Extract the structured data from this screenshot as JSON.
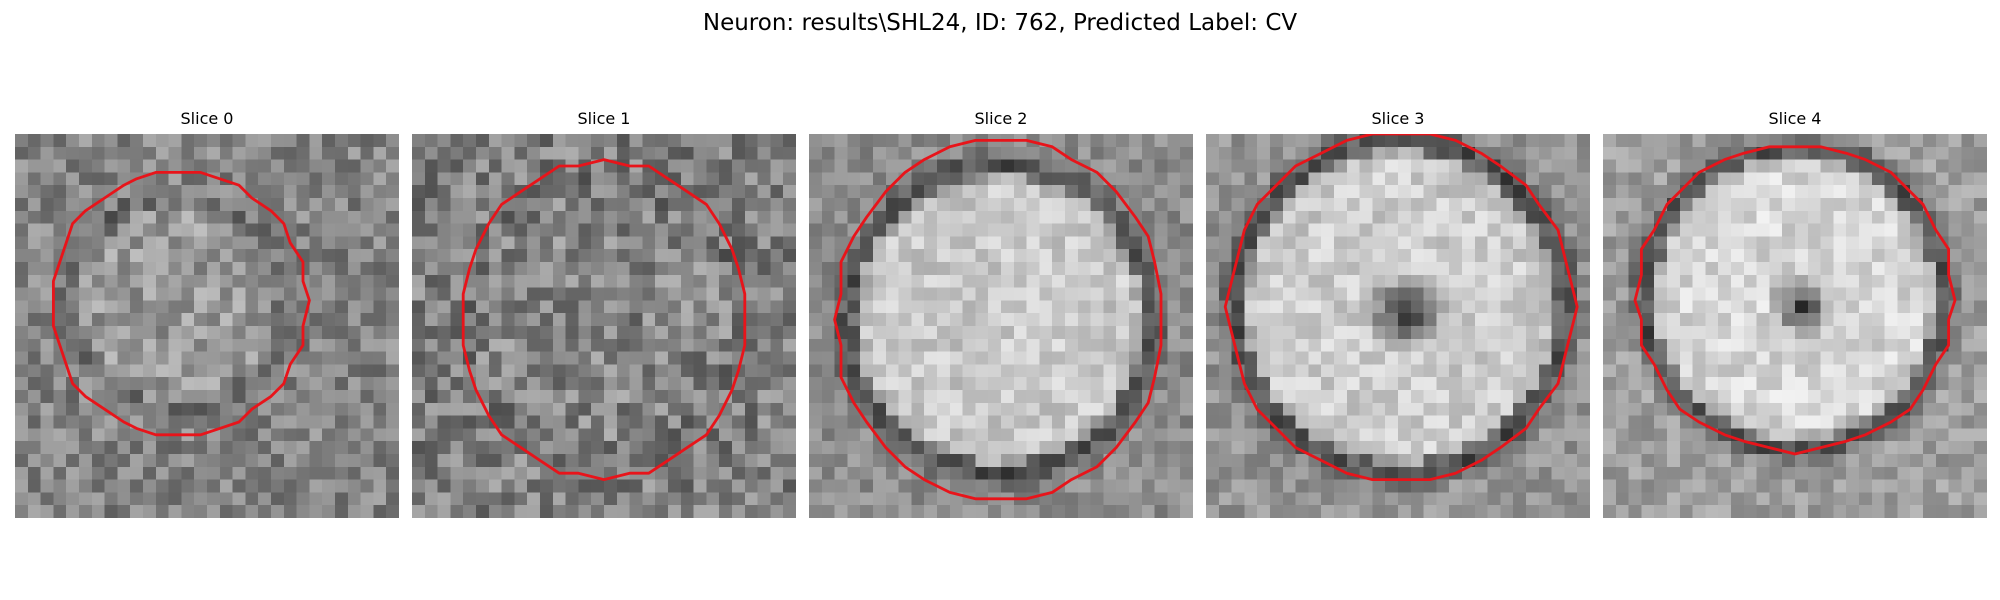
{
  "figure": {
    "title": "Neuron: results\\SHL24, ID: 762, Predicted Label: CV"
  },
  "colors": {
    "contour": "#e8141a",
    "colormap": "grayscale"
  },
  "panels": [
    {
      "title": "Slice 0",
      "contour": "neuron-outline",
      "texture": "noisy gray tissue, faint lighter cell body"
    },
    {
      "title": "Slice 1",
      "contour": "neuron-outline",
      "texture": "noisy gray tissue, mottled cell body"
    },
    {
      "title": "Slice 2",
      "contour": "neuron-outline",
      "texture": "bright cell body with dark surrounding ring"
    },
    {
      "title": "Slice 3",
      "contour": "neuron-outline",
      "texture": "bright cell body with dark central nucleus"
    },
    {
      "title": "Slice 4",
      "contour": "neuron-outline",
      "texture": "bright cell body with dark central nucleus"
    }
  ]
}
